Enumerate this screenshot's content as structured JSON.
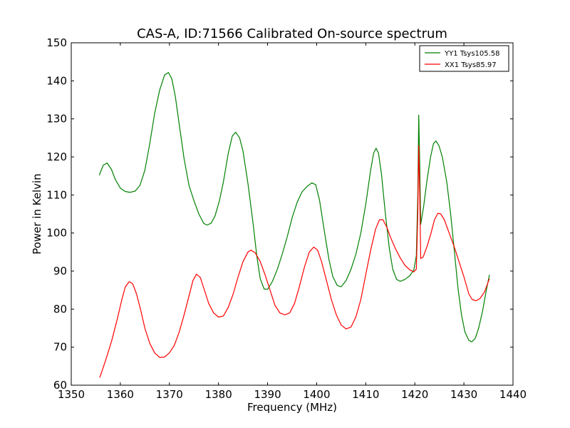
{
  "chart_data": {
    "type": "line",
    "title": "CAS-A, ID:71566 Calibrated On-source spectrum",
    "xlabel": "Frequency (MHz)",
    "ylabel": "Power in Kelvin",
    "xlim": [
      1350,
      1440
    ],
    "ylim": [
      60,
      150
    ],
    "xticks": [
      1350,
      1360,
      1370,
      1380,
      1390,
      1400,
      1410,
      1420,
      1430,
      1440
    ],
    "yticks": [
      60,
      70,
      80,
      90,
      100,
      110,
      120,
      130,
      140,
      150
    ],
    "xtick_labels": [
      "1350",
      "1360",
      "1370",
      "1380",
      "1390",
      "1400",
      "1410",
      "1420",
      "1430",
      "1440"
    ],
    "ytick_labels": [
      "60",
      "70",
      "80",
      "90",
      "100",
      "110",
      "120",
      "130",
      "140",
      "150"
    ],
    "grid": false,
    "legend_position": "top-right",
    "series": [
      {
        "name": "YY1 Tsys105.58",
        "color": "#008000",
        "points": [
          [
            1355.7,
            115.2
          ],
          [
            1356.5,
            117.8
          ],
          [
            1357.3,
            118.4
          ],
          [
            1358.2,
            116.7
          ],
          [
            1359.0,
            114.0
          ],
          [
            1360.0,
            111.8
          ],
          [
            1361.0,
            110.9
          ],
          [
            1362.0,
            110.7
          ],
          [
            1363.0,
            111.0
          ],
          [
            1364.0,
            112.5
          ],
          [
            1365.0,
            116.5
          ],
          [
            1366.0,
            123.5
          ],
          [
            1367.0,
            131.5
          ],
          [
            1368.0,
            137.5
          ],
          [
            1369.0,
            141.5
          ],
          [
            1369.8,
            142.2
          ],
          [
            1370.5,
            140.5
          ],
          [
            1371.2,
            136.0
          ],
          [
            1372.0,
            128.5
          ],
          [
            1373.0,
            119.5
          ],
          [
            1374.0,
            112.5
          ],
          [
            1375.0,
            108.5
          ],
          [
            1376.0,
            105.0
          ],
          [
            1377.0,
            102.5
          ],
          [
            1377.7,
            102.1
          ],
          [
            1378.5,
            102.6
          ],
          [
            1379.3,
            104.5
          ],
          [
            1380.2,
            108.5
          ],
          [
            1381.0,
            113.5
          ],
          [
            1382.0,
            121.0
          ],
          [
            1382.8,
            125.5
          ],
          [
            1383.5,
            126.5
          ],
          [
            1384.3,
            125.0
          ],
          [
            1385.0,
            121.5
          ],
          [
            1386.0,
            113.0
          ],
          [
            1387.0,
            103.0
          ],
          [
            1387.8,
            94.0
          ],
          [
            1388.5,
            88.0
          ],
          [
            1389.3,
            85.3
          ],
          [
            1390.0,
            85.2
          ],
          [
            1391.0,
            87.3
          ],
          [
            1392.0,
            90.5
          ],
          [
            1393.0,
            94.5
          ],
          [
            1394.0,
            99.0
          ],
          [
            1395.0,
            104.0
          ],
          [
            1396.0,
            108.0
          ],
          [
            1397.0,
            110.8
          ],
          [
            1398.0,
            112.2
          ],
          [
            1399.0,
            113.2
          ],
          [
            1399.8,
            112.7
          ],
          [
            1400.6,
            108.5
          ],
          [
            1401.5,
            101.0
          ],
          [
            1402.5,
            93.0
          ],
          [
            1403.3,
            88.5
          ],
          [
            1404.2,
            86.2
          ],
          [
            1405.0,
            85.9
          ],
          [
            1406.0,
            87.5
          ],
          [
            1407.0,
            90.5
          ],
          [
            1408.0,
            94.5
          ],
          [
            1409.0,
            100.0
          ],
          [
            1410.0,
            107.5
          ],
          [
            1411.0,
            116.5
          ],
          [
            1411.6,
            121.0
          ],
          [
            1412.1,
            122.3
          ],
          [
            1412.6,
            121.0
          ],
          [
            1413.2,
            115.5
          ],
          [
            1414.0,
            105.0
          ],
          [
            1414.8,
            96.0
          ],
          [
            1415.5,
            90.5
          ],
          [
            1416.3,
            87.8
          ],
          [
            1417.0,
            87.3
          ],
          [
            1418.0,
            87.8
          ],
          [
            1419.0,
            88.8
          ],
          [
            1419.8,
            90.3
          ],
          [
            1420.3,
            94.0
          ],
          [
            1420.6,
            110.0
          ],
          [
            1420.8,
            131.0
          ],
          [
            1421.0,
            118.0
          ],
          [
            1421.2,
            102.3
          ],
          [
            1421.8,
            107.0
          ],
          [
            1422.5,
            114.0
          ],
          [
            1423.2,
            120.0
          ],
          [
            1423.8,
            123.5
          ],
          [
            1424.3,
            124.2
          ],
          [
            1424.9,
            123.0
          ],
          [
            1425.6,
            120.0
          ],
          [
            1426.5,
            113.5
          ],
          [
            1427.3,
            105.0
          ],
          [
            1428.0,
            96.0
          ],
          [
            1428.8,
            85.5
          ],
          [
            1429.5,
            78.5
          ],
          [
            1430.2,
            74.0
          ],
          [
            1431.0,
            71.8
          ],
          [
            1431.6,
            71.4
          ],
          [
            1432.3,
            72.3
          ],
          [
            1433.0,
            75.0
          ],
          [
            1433.8,
            79.5
          ],
          [
            1434.5,
            84.5
          ],
          [
            1435.2,
            89.0
          ]
        ]
      },
      {
        "name": "XX1 Tsys85.97",
        "color": "#ff0000",
        "points": [
          [
            1355.8,
            62.0
          ],
          [
            1357.0,
            66.5
          ],
          [
            1358.2,
            71.5
          ],
          [
            1359.3,
            77.0
          ],
          [
            1360.3,
            82.5
          ],
          [
            1361.0,
            85.8
          ],
          [
            1361.8,
            87.2
          ],
          [
            1362.5,
            86.7
          ],
          [
            1363.3,
            84.0
          ],
          [
            1364.2,
            79.5
          ],
          [
            1365.0,
            75.0
          ],
          [
            1366.0,
            71.0
          ],
          [
            1367.0,
            68.5
          ],
          [
            1368.0,
            67.3
          ],
          [
            1369.0,
            67.4
          ],
          [
            1370.0,
            68.5
          ],
          [
            1371.0,
            70.5
          ],
          [
            1372.0,
            74.0
          ],
          [
            1373.0,
            78.5
          ],
          [
            1374.0,
            83.5
          ],
          [
            1374.8,
            87.5
          ],
          [
            1375.5,
            89.2
          ],
          [
            1376.3,
            88.3
          ],
          [
            1377.0,
            85.5
          ],
          [
            1378.0,
            81.5
          ],
          [
            1379.0,
            79.0
          ],
          [
            1380.0,
            77.9
          ],
          [
            1381.0,
            78.2
          ],
          [
            1382.0,
            80.5
          ],
          [
            1383.0,
            84.0
          ],
          [
            1384.0,
            88.5
          ],
          [
            1385.0,
            92.5
          ],
          [
            1386.0,
            95.0
          ],
          [
            1386.6,
            95.5
          ],
          [
            1387.5,
            94.8
          ],
          [
            1388.5,
            92.5
          ],
          [
            1389.5,
            89.0
          ],
          [
            1390.5,
            85.0
          ],
          [
            1391.5,
            81.0
          ],
          [
            1392.5,
            79.0
          ],
          [
            1393.5,
            78.5
          ],
          [
            1394.5,
            79.0
          ],
          [
            1395.5,
            81.5
          ],
          [
            1396.5,
            86.0
          ],
          [
            1397.5,
            91.0
          ],
          [
            1398.5,
            95.0
          ],
          [
            1399.4,
            96.3
          ],
          [
            1400.2,
            95.5
          ],
          [
            1401.0,
            92.5
          ],
          [
            1402.0,
            87.5
          ],
          [
            1403.0,
            82.5
          ],
          [
            1404.0,
            78.5
          ],
          [
            1405.0,
            75.8
          ],
          [
            1406.0,
            74.8
          ],
          [
            1407.0,
            75.3
          ],
          [
            1408.0,
            78.0
          ],
          [
            1409.0,
            82.5
          ],
          [
            1410.0,
            89.0
          ],
          [
            1411.0,
            95.5
          ],
          [
            1412.0,
            101.0
          ],
          [
            1412.8,
            103.5
          ],
          [
            1413.5,
            103.5
          ],
          [
            1414.3,
            101.5
          ],
          [
            1415.0,
            99.0
          ],
          [
            1416.0,
            96.0
          ],
          [
            1417.0,
            93.5
          ],
          [
            1418.0,
            91.5
          ],
          [
            1419.0,
            90.3
          ],
          [
            1419.8,
            89.8
          ],
          [
            1420.3,
            90.5
          ],
          [
            1420.6,
            105.0
          ],
          [
            1420.8,
            123.0
          ],
          [
            1421.0,
            110.0
          ],
          [
            1421.2,
            93.3
          ],
          [
            1421.7,
            93.7
          ],
          [
            1422.5,
            96.5
          ],
          [
            1423.3,
            100.0
          ],
          [
            1424.0,
            103.5
          ],
          [
            1424.7,
            105.2
          ],
          [
            1425.3,
            105.0
          ],
          [
            1426.0,
            103.5
          ],
          [
            1427.0,
            100.0
          ],
          [
            1428.0,
            96.5
          ],
          [
            1429.0,
            92.5
          ],
          [
            1430.0,
            88.5
          ],
          [
            1431.0,
            84.0
          ],
          [
            1431.7,
            82.5
          ],
          [
            1432.5,
            82.2
          ],
          [
            1433.3,
            82.8
          ],
          [
            1434.2,
            84.5
          ],
          [
            1435.2,
            88.0
          ]
        ]
      }
    ]
  }
}
